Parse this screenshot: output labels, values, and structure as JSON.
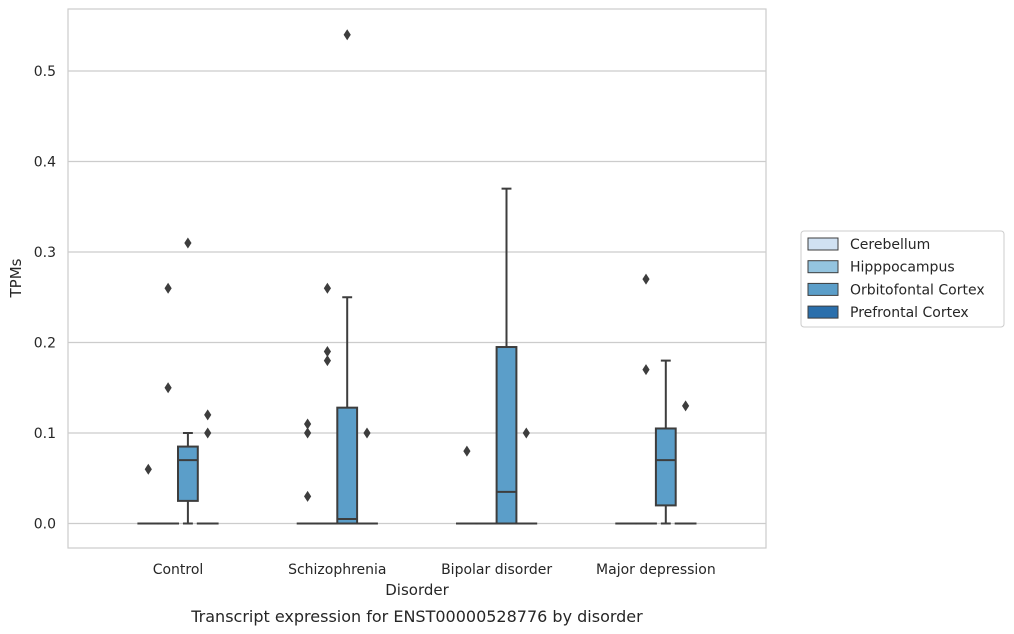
{
  "chart_data": {
    "type": "box",
    "xlabel": "Disorder",
    "ylabel": "TPMs",
    "caption": "Transcript expression for ENST00000528776 by disorder",
    "categories": [
      "Control",
      "Schizophrenia",
      "Bipolar disorder",
      "Major depression"
    ],
    "ylim": [
      -0.027,
      0.57
    ],
    "yticks": [
      0.0,
      0.1,
      0.2,
      0.3,
      0.4,
      0.5
    ],
    "ytick_labels": [
      "0.0",
      "0.1",
      "0.2",
      "0.3",
      "0.4",
      "0.5"
    ],
    "grid": true,
    "legend_position": "right",
    "series": [
      {
        "name": "Cerebellum",
        "color": "#d0e1f2",
        "boxes": [
          {
            "category": "Control",
            "q1": 0,
            "median": 0,
            "q3": 0,
            "whisker_low": 0,
            "whisker_high": 0,
            "outliers": [
              0.06
            ]
          },
          {
            "category": "Schizophrenia",
            "q1": 0,
            "median": 0,
            "q3": 0,
            "whisker_low": 0,
            "whisker_high": 0,
            "outliers": [
              0.03,
              0.1,
              0.11
            ]
          },
          {
            "category": "Bipolar disorder",
            "q1": 0,
            "median": 0,
            "q3": 0,
            "whisker_low": 0,
            "whisker_high": 0,
            "outliers": [
              0.08
            ]
          },
          {
            "category": "Major depression",
            "q1": 0,
            "median": 0,
            "q3": 0,
            "whisker_low": 0,
            "whisker_high": 0,
            "outliers": []
          }
        ]
      },
      {
        "name": "Hipppocampus",
        "color": "#94c4df",
        "boxes": [
          {
            "category": "Control",
            "q1": 0,
            "median": 0,
            "q3": 0,
            "whisker_low": 0,
            "whisker_high": 0,
            "outliers": [
              0.15,
              0.26
            ]
          },
          {
            "category": "Schizophrenia",
            "q1": 0,
            "median": 0,
            "q3": 0,
            "whisker_low": 0,
            "whisker_high": 0,
            "outliers": [
              0.18,
              0.19,
              0.26
            ]
          },
          {
            "category": "Bipolar disorder",
            "q1": 0,
            "median": 0,
            "q3": 0,
            "whisker_low": 0,
            "whisker_high": 0,
            "outliers": []
          },
          {
            "category": "Major depression",
            "q1": 0,
            "median": 0,
            "q3": 0,
            "whisker_low": 0,
            "whisker_high": 0,
            "outliers": [
              0.17,
              0.27
            ]
          }
        ]
      },
      {
        "name": "Orbitofontal Cortex",
        "color": "#5b9ec9",
        "boxes": [
          {
            "category": "Control",
            "q1": 0.025,
            "median": 0.07,
            "q3": 0.085,
            "whisker_low": 0,
            "whisker_high": 0.1,
            "outliers": [
              0.31
            ]
          },
          {
            "category": "Schizophrenia",
            "q1": 0,
            "median": 0.005,
            "q3": 0.128,
            "whisker_low": 0,
            "whisker_high": 0.25,
            "outliers": [
              0.54
            ]
          },
          {
            "category": "Bipolar disorder",
            "q1": 0,
            "median": 0.035,
            "q3": 0.195,
            "whisker_low": 0,
            "whisker_high": 0.37,
            "outliers": []
          },
          {
            "category": "Major depression",
            "q1": 0.02,
            "median": 0.07,
            "q3": 0.105,
            "whisker_low": 0,
            "whisker_high": 0.18,
            "outliers": []
          }
        ]
      },
      {
        "name": "Prefrontal Cortex",
        "color": "#2a6fac",
        "boxes": [
          {
            "category": "Control",
            "q1": 0,
            "median": 0,
            "q3": 0,
            "whisker_low": 0,
            "whisker_high": 0,
            "outliers": [
              0.1,
              0.12
            ]
          },
          {
            "category": "Schizophrenia",
            "q1": 0,
            "median": 0,
            "q3": 0,
            "whisker_low": 0,
            "whisker_high": 0,
            "outliers": [
              0.1
            ]
          },
          {
            "category": "Bipolar disorder",
            "q1": 0,
            "median": 0,
            "q3": 0,
            "whisker_low": 0,
            "whisker_high": 0,
            "outliers": [
              0.1
            ]
          },
          {
            "category": "Major depression",
            "q1": 0,
            "median": 0,
            "q3": 0,
            "whisker_low": 0,
            "whisker_high": 0,
            "outliers": [
              0.13
            ]
          }
        ]
      }
    ]
  }
}
